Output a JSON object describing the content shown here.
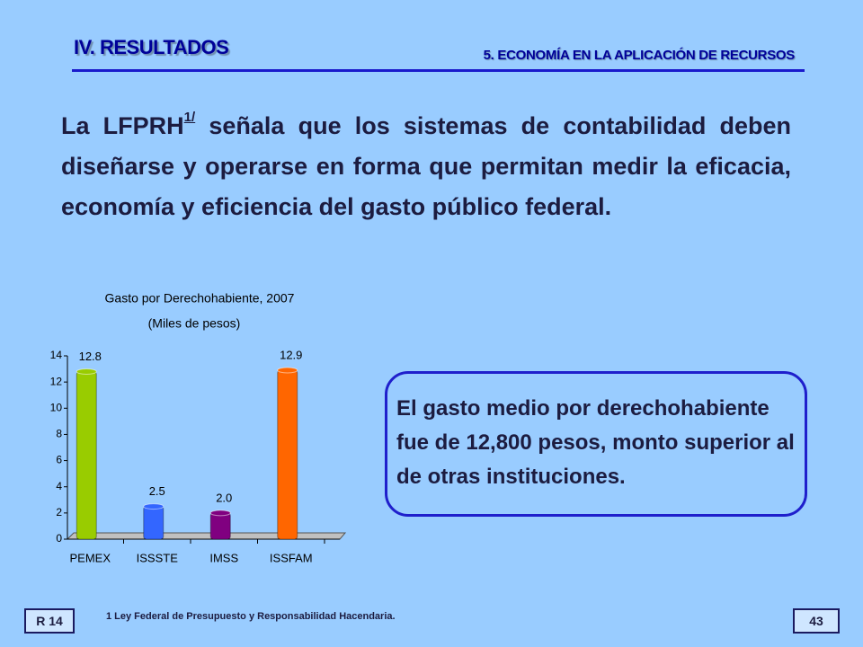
{
  "header": {
    "title": "IV. RESULTADOS",
    "section": "5. ECONOMÍA EN LA APLICACIÓN DE RECURSOS"
  },
  "paragraph": {
    "lead": "La LFPRH",
    "note_ref": "1/",
    "text": "señala que los sistemas de contabilidad deben diseñarse y operarse en forma que permitan medir la eficacia, economía y eficiencia del gasto público federal."
  },
  "callout": "El gasto medio por derechohabiente fue de 12,800 pesos, monto superior al de otras instituciones.",
  "footer": {
    "left": "R 14",
    "note": "1 Ley Federal de Presupuesto y Responsabilidad Hacendaria.",
    "page": "43"
  },
  "chart_data": {
    "type": "bar",
    "title": "Gasto por Derechohabiente, 2007",
    "subtitle": "(Miles de pesos)",
    "categories": [
      "PEMEX",
      "ISSSTE",
      "IMSS",
      "ISSFAM"
    ],
    "values": [
      12.8,
      2.5,
      2.0,
      12.9
    ],
    "value_labels": [
      "12.8",
      "2.5",
      "2.0",
      "12.9"
    ],
    "colors": [
      "#99cc00",
      "#3366ff",
      "#800080",
      "#ff6600"
    ],
    "ylim": [
      0,
      14
    ],
    "yticks": [
      0,
      2,
      4,
      6,
      8,
      10,
      12,
      14
    ]
  }
}
